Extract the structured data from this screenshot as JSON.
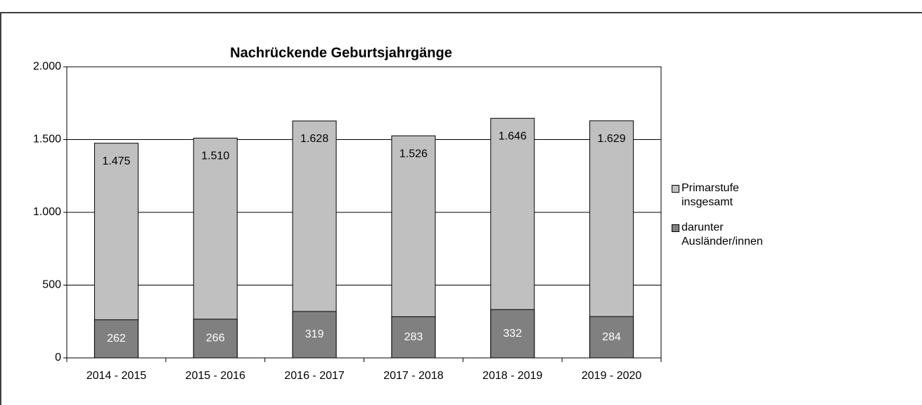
{
  "chart_data": {
    "type": "bar",
    "mode": "overlap",
    "title": "Nachrückende Geburtsjahrgänge",
    "categories": [
      "2014 - 2015",
      "2015 - 2016",
      "2016 - 2017",
      "2017 - 2018",
      "2018 - 2019",
      "2019 - 2020"
    ],
    "series": [
      {
        "name": "Primarstufe insgesamt",
        "color": "#c0c0c0",
        "values": [
          1475,
          1510,
          1628,
          1526,
          1646,
          1629
        ],
        "value_labels": [
          "1.475",
          "1.510",
          "1.628",
          "1.526",
          "1.646",
          "1.629"
        ]
      },
      {
        "name": "darunter Ausländer/innen",
        "color": "#808080",
        "values": [
          262,
          266,
          319,
          283,
          332,
          284
        ]
      }
    ],
    "ylim": [
      0,
      2000
    ],
    "yticks": [
      0,
      500,
      {
        "value": 1000,
        "label": "1.000"
      },
      {
        "value": 1500,
        "label": "1.500"
      },
      {
        "value": 2000,
        "label": "2.000"
      }
    ],
    "grid": true,
    "legend": "right"
  }
}
